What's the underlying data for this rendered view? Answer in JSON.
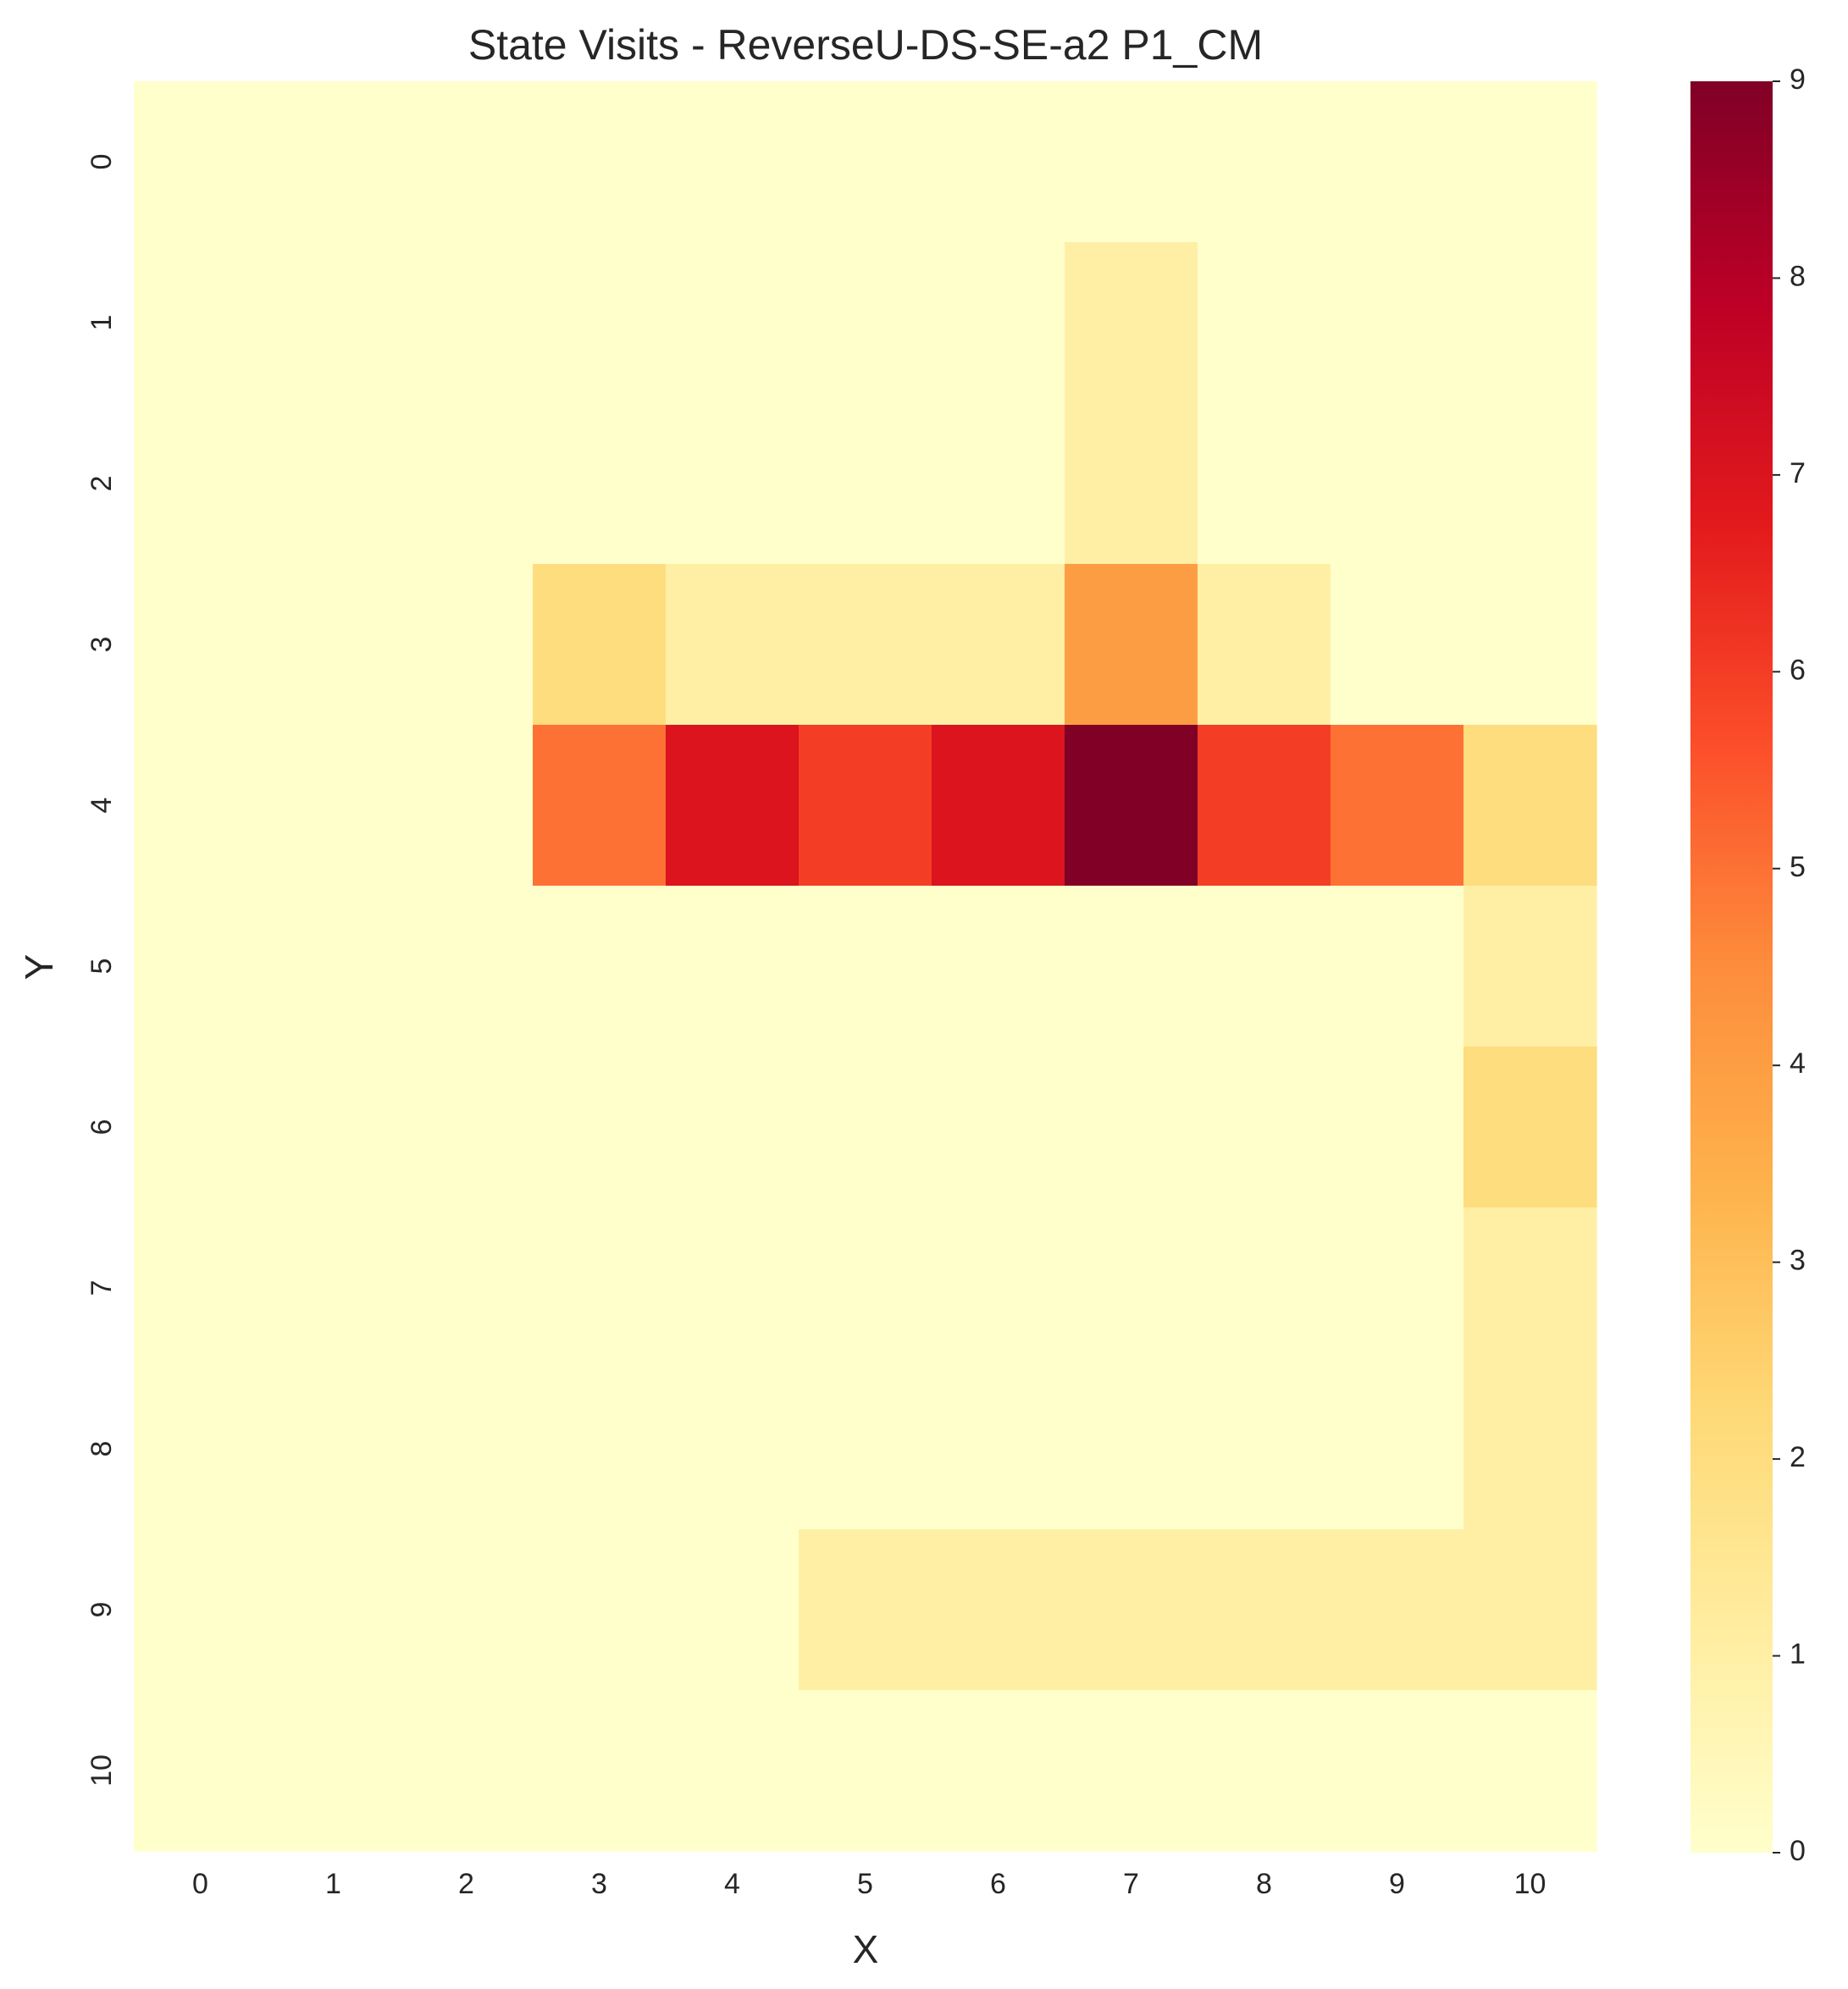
{
  "chart_data": {
    "type": "heatmap",
    "title": "State Visits - ReverseU-DS-SE-a2 P1_CM",
    "xlabel": "X",
    "ylabel": "Y",
    "x_categories": [
      "0",
      "1",
      "2",
      "3",
      "4",
      "5",
      "6",
      "7",
      "8",
      "9",
      "10"
    ],
    "y_categories": [
      "0",
      "1",
      "2",
      "3",
      "4",
      "5",
      "6",
      "7",
      "8",
      "9",
      "10"
    ],
    "values": [
      [
        0,
        0,
        0,
        0,
        0,
        0,
        0,
        0,
        0,
        0,
        0
      ],
      [
        0,
        0,
        0,
        0,
        0,
        0,
        0,
        1,
        0,
        0,
        0
      ],
      [
        0,
        0,
        0,
        0,
        0,
        0,
        0,
        1,
        0,
        0,
        0
      ],
      [
        0,
        0,
        0,
        2,
        1,
        1,
        1,
        4,
        1,
        0,
        0
      ],
      [
        0,
        0,
        0,
        5,
        7,
        6,
        7,
        9,
        6,
        5,
        2
      ],
      [
        0,
        0,
        0,
        0,
        0,
        0,
        0,
        0,
        0,
        0,
        1
      ],
      [
        0,
        0,
        0,
        0,
        0,
        0,
        0,
        0,
        0,
        0,
        2
      ],
      [
        0,
        0,
        0,
        0,
        0,
        0,
        0,
        0,
        0,
        0,
        1
      ],
      [
        0,
        0,
        0,
        0,
        0,
        0,
        0,
        0,
        0,
        0,
        1
      ],
      [
        0,
        0,
        0,
        0,
        0,
        1,
        1,
        1,
        1,
        1,
        1
      ],
      [
        0,
        0,
        0,
        0,
        0,
        0,
        0,
        0,
        0,
        0,
        0
      ]
    ],
    "colormap": "YlOrRd",
    "value_range": [
      0,
      9
    ],
    "colorbar_ticks": [
      "0",
      "1",
      "2",
      "3",
      "4",
      "5",
      "6",
      "7",
      "8",
      "9"
    ],
    "grid": false,
    "colorbar_position": "right"
  }
}
